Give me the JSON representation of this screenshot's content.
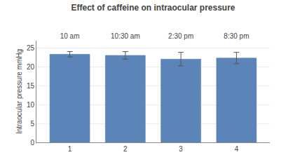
{
  "chart_data": {
    "type": "bar",
    "title": "Effect of caffeine on intraocular pressure",
    "ylabel": "Intraocular pressure mmHg",
    "x": [
      1,
      2,
      3,
      4
    ],
    "values": [
      23.4,
      23.1,
      22.1,
      22.4
    ],
    "errors": [
      0.7,
      1.0,
      1.8,
      1.5
    ],
    "color": "#5b84b8",
    "xlim": [
      0.4,
      4.6
    ],
    "xticks": [
      1,
      2,
      3,
      4
    ],
    "x2ticks": [
      {
        "value": 1,
        "label": "10 am"
      },
      {
        "value": 2,
        "label": "10:30 am"
      },
      {
        "value": 3,
        "label": "2:30 pm"
      },
      {
        "value": 4,
        "label": "8:30 pm"
      }
    ],
    "ylim": [
      0,
      27
    ],
    "yticks": [
      0,
      5,
      10,
      15,
      20,
      25
    ],
    "grid": true
  }
}
